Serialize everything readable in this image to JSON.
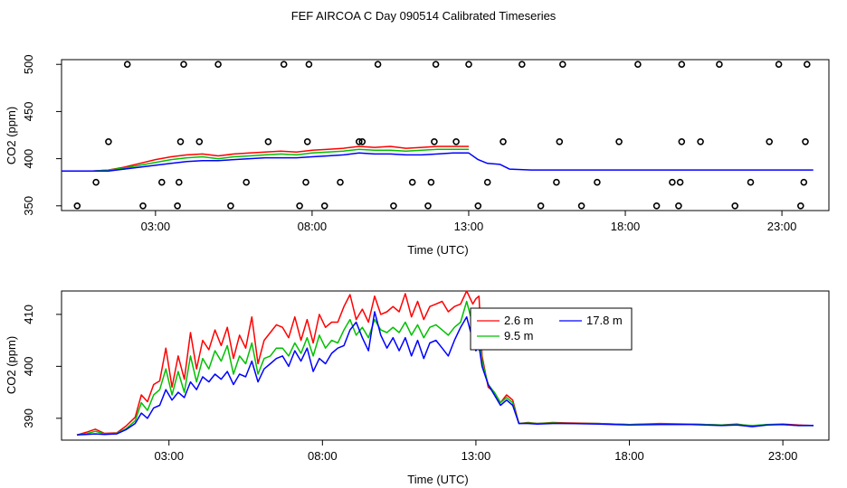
{
  "figure_title": "FEF AIRCOA C  Day 090514  Calibrated Timeseries",
  "colors": {
    "red": "#ff0000",
    "green": "#00c000",
    "blue": "#0000ff",
    "axis": "#000000"
  },
  "chart_data": [
    {
      "type": "line",
      "xlabel": "Time (UTC)",
      "ylabel": "CO2 (ppm)",
      "xlim": [
        0,
        24.5
      ],
      "ylim": [
        345,
        505
      ],
      "x_ticks": [
        3,
        8,
        13,
        18,
        23
      ],
      "x_tick_labels": [
        "03:00",
        "08:00",
        "13:00",
        "18:00",
        "23:00"
      ],
      "y_ticks": [
        350,
        400,
        450,
        500
      ],
      "y_tick_labels": [
        "350",
        "400",
        "450",
        "500"
      ],
      "series": [
        {
          "name": "2.6 m",
          "color": "red",
          "x": [
            0,
            1,
            1.5,
            2,
            2.5,
            3,
            3.5,
            4,
            4.5,
            5,
            5.5,
            6,
            6.5,
            7,
            7.5,
            8,
            8.5,
            9,
            9.5,
            10,
            10.5,
            11,
            11.5,
            12,
            12.5,
            13
          ],
          "y": [
            387,
            387,
            388,
            391,
            395,
            399,
            402,
            404,
            405,
            403,
            405,
            406,
            407,
            408,
            407,
            409,
            410,
            411,
            413,
            412,
            413,
            411,
            412,
            413,
            413,
            413
          ]
        },
        {
          "name": "9.5 m",
          "color": "green",
          "x": [
            0,
            1,
            1.5,
            2,
            2.5,
            3,
            3.5,
            4,
            4.5,
            5,
            5.5,
            6,
            6.5,
            7,
            7.5,
            8,
            8.5,
            9,
            9.5,
            10,
            10.5,
            11,
            11.5,
            12,
            12.5,
            13
          ],
          "y": [
            387,
            387,
            388,
            390,
            393,
            396,
            399,
            401,
            402,
            400,
            402,
            403,
            404,
            405,
            404,
            406,
            407,
            408,
            410,
            409,
            409,
            408,
            409,
            410,
            410,
            410
          ]
        },
        {
          "name": "17.8 m",
          "color": "blue",
          "x": [
            0,
            1,
            1.5,
            2,
            2.5,
            3,
            3.5,
            4,
            4.5,
            5,
            5.5,
            6,
            6.5,
            7,
            7.5,
            8,
            8.5,
            9,
            9.5,
            10,
            10.5,
            11,
            11.5,
            12,
            12.5,
            13,
            13.3,
            13.6,
            14,
            14.3,
            15,
            17,
            20,
            24
          ],
          "y": [
            387,
            387,
            387,
            389,
            391,
            393,
            395,
            397,
            398,
            398,
            399,
            400,
            401,
            401,
            401,
            402,
            403,
            404,
            406,
            405,
            405,
            404,
            404,
            405,
            406,
            406,
            399,
            395,
            394,
            389,
            388,
            388,
            388,
            388
          ]
        }
      ],
      "markers": {
        "symbol": "open-circle",
        "x": [
          0.5,
          1.1,
          1.5,
          2.1,
          2.6,
          3.2,
          3.7,
          3.75,
          3.8,
          3.9,
          4.4,
          5.0,
          5.4,
          5.9,
          6.6,
          7.1,
          7.6,
          7.8,
          7.85,
          7.9,
          8.4,
          8.9,
          9.5,
          9.6,
          10.1,
          10.6,
          11.2,
          11.7,
          11.8,
          11.9,
          11.95,
          12.6,
          13,
          13.3,
          13.6,
          14.1,
          14.7,
          15.3,
          15.8,
          15.9,
          16.0,
          16.6,
          17.1,
          17.8,
          18.4,
          19.0,
          19.5,
          19.7,
          19.75,
          19.8,
          19.8,
          20.4,
          21.0,
          21.5,
          22.0,
          22.6,
          22.9,
          23.6,
          23.7,
          23.75,
          23.8
        ],
        "y": [
          350,
          375,
          418,
          500,
          350,
          375,
          350,
          375,
          418,
          500,
          418,
          500,
          350,
          375,
          418,
          500,
          350,
          375,
          418,
          500,
          350,
          375,
          418,
          418,
          500,
          350,
          375,
          350,
          375,
          418,
          500,
          418,
          500,
          350,
          375,
          418,
          500,
          350,
          375,
          418,
          500,
          350,
          375,
          418,
          500,
          350,
          375,
          350,
          375,
          418,
          500,
          418,
          500,
          350,
          375,
          418,
          500,
          350,
          375,
          418,
          500
        ]
      }
    },
    {
      "type": "line",
      "xlabel": "Time (UTC)",
      "ylabel": "CO2 (ppm)",
      "xlim": [
        -0.5,
        24.5
      ],
      "ylim": [
        385.8,
        414.5
      ],
      "x_ticks": [
        3,
        8,
        13,
        18,
        23
      ],
      "x_tick_labels": [
        "03:00",
        "08:00",
        "13:00",
        "18:00",
        "23:00"
      ],
      "y_ticks": [
        390,
        400,
        410
      ],
      "y_tick_labels": [
        "390",
        "400",
        "410"
      ],
      "legend": {
        "position": "top-right",
        "entries": [
          "2.6 m",
          "9.5 m",
          "17.8 m"
        ]
      },
      "series": [
        {
          "name": "2.6 m",
          "color": "red",
          "x": [
            0,
            0.3,
            0.6,
            0.9,
            1.3,
            1.6,
            1.9,
            2.1,
            2.3,
            2.5,
            2.7,
            2.9,
            3.1,
            3.3,
            3.5,
            3.7,
            3.9,
            4.1,
            4.3,
            4.5,
            4.7,
            4.9,
            5.1,
            5.3,
            5.5,
            5.7,
            5.9,
            6.1,
            6.3,
            6.5,
            6.7,
            6.9,
            7.1,
            7.3,
            7.5,
            7.7,
            7.9,
            8.1,
            8.3,
            8.5,
            8.7,
            8.9,
            9.1,
            9.3,
            9.5,
            9.7,
            9.9,
            10.1,
            10.3,
            10.5,
            10.7,
            10.9,
            11.1,
            11.3,
            11.5,
            11.7,
            11.9,
            12.1,
            12.3,
            12.5,
            12.7,
            12.9,
            13.0,
            13.1,
            13.2,
            13.4,
            13.6,
            13.8,
            14.0,
            14.2,
            14.4,
            14.7,
            15.0,
            15.5,
            16,
            17,
            18,
            19,
            20,
            21,
            21.5,
            22,
            22.5,
            23,
            23.5,
            24
          ],
          "y": [
            386.8,
            387.3,
            387.9,
            387.1,
            387.2,
            388.5,
            390.2,
            394.5,
            393.2,
            396.5,
            397.2,
            403.5,
            396.0,
            402.0,
            397.5,
            406.5,
            399.5,
            405.0,
            403.2,
            407.0,
            404.0,
            407.5,
            401.5,
            406.0,
            403.5,
            409.5,
            400.5,
            405.0,
            406.5,
            408.0,
            407.5,
            405.5,
            409.5,
            405.0,
            409.0,
            404.5,
            410.0,
            407.5,
            408.5,
            408.5,
            411.5,
            413.8,
            409.0,
            411.0,
            408.5,
            413.5,
            410.0,
            410.5,
            411.5,
            410.5,
            414.0,
            409.5,
            412.5,
            409.0,
            411.5,
            412.0,
            412.5,
            410.5,
            411.5,
            412.0,
            414.5,
            412.0,
            413.0,
            413.5,
            402.0,
            396.0,
            395.0,
            393.0,
            394.5,
            393.5,
            389.0,
            389.2,
            389.0,
            389.2,
            389.1,
            389.0,
            388.8,
            389.0,
            388.9,
            388.7,
            388.9,
            388.5,
            388.8,
            388.9,
            388.7,
            388.6
          ]
        },
        {
          "name": "9.5 m",
          "color": "green",
          "x": [
            0,
            0.3,
            0.6,
            0.9,
            1.3,
            1.6,
            1.9,
            2.1,
            2.3,
            2.5,
            2.7,
            2.9,
            3.1,
            3.3,
            3.5,
            3.7,
            3.9,
            4.1,
            4.3,
            4.5,
            4.7,
            4.9,
            5.1,
            5.3,
            5.5,
            5.7,
            5.9,
            6.1,
            6.3,
            6.5,
            6.7,
            6.9,
            7.1,
            7.3,
            7.5,
            7.7,
            7.9,
            8.1,
            8.3,
            8.5,
            8.7,
            8.9,
            9.1,
            9.3,
            9.5,
            9.7,
            9.9,
            10.1,
            10.3,
            10.5,
            10.7,
            10.9,
            11.1,
            11.3,
            11.5,
            11.7,
            11.9,
            12.1,
            12.3,
            12.5,
            12.7,
            12.9,
            13.0,
            13.1,
            13.2,
            13.4,
            13.6,
            13.8,
            14.0,
            14.2,
            14.4,
            14.7,
            15.0,
            15.5,
            16,
            17,
            18,
            19,
            20,
            21,
            21.5,
            22,
            22.5,
            23,
            23.5,
            24
          ],
          "y": [
            386.8,
            387.0,
            387.5,
            387.0,
            387.1,
            388.0,
            389.5,
            393.0,
            391.5,
            394.5,
            395.5,
            399.5,
            394.5,
            399.0,
            395.0,
            402.0,
            397.0,
            401.5,
            399.5,
            403.0,
            401.0,
            404.0,
            398.5,
            402.0,
            400.5,
            404.5,
            398.5,
            401.5,
            402.0,
            403.5,
            403.5,
            402.0,
            404.5,
            402.5,
            405.5,
            402.0,
            406.0,
            403.5,
            405.0,
            404.5,
            407.0,
            409.0,
            406.0,
            407.5,
            405.5,
            409.0,
            407.0,
            406.5,
            407.5,
            406.5,
            408.5,
            406.0,
            408.0,
            405.5,
            407.5,
            408.0,
            407.0,
            406.0,
            407.5,
            408.5,
            412.5,
            408.0,
            403.5,
            407.5,
            401.0,
            396.5,
            395.0,
            393.0,
            394.0,
            393.0,
            389.0,
            389.1,
            389.0,
            389.1,
            389.0,
            389.0,
            388.8,
            388.9,
            388.9,
            388.7,
            388.8,
            388.6,
            388.8,
            388.8,
            388.6,
            388.6
          ]
        },
        {
          "name": "17.8 m",
          "color": "blue",
          "x": [
            0,
            0.3,
            0.6,
            0.9,
            1.3,
            1.6,
            1.9,
            2.1,
            2.3,
            2.5,
            2.7,
            2.9,
            3.1,
            3.3,
            3.5,
            3.7,
            3.9,
            4.1,
            4.3,
            4.5,
            4.7,
            4.9,
            5.1,
            5.3,
            5.5,
            5.7,
            5.9,
            6.1,
            6.3,
            6.5,
            6.7,
            6.9,
            7.1,
            7.3,
            7.5,
            7.7,
            7.9,
            8.1,
            8.3,
            8.5,
            8.7,
            8.9,
            9.1,
            9.3,
            9.5,
            9.7,
            9.9,
            10.1,
            10.3,
            10.5,
            10.7,
            10.9,
            11.1,
            11.3,
            11.5,
            11.7,
            11.9,
            12.1,
            12.3,
            12.5,
            12.7,
            12.9,
            13.0,
            13.1,
            13.2,
            13.4,
            13.6,
            13.8,
            14.0,
            14.2,
            14.4,
            14.7,
            15.0,
            15.5,
            16,
            17,
            18,
            19,
            20,
            21,
            21.5,
            22,
            22.5,
            23,
            23.5,
            24
          ],
          "y": [
            386.8,
            386.9,
            387.0,
            386.9,
            387.0,
            387.8,
            389.0,
            391.0,
            390.0,
            392.0,
            392.5,
            395.5,
            393.5,
            395.0,
            394.0,
            397.0,
            395.5,
            398.0,
            397.0,
            398.5,
            397.5,
            399.0,
            396.5,
            398.5,
            398.0,
            401.0,
            397.0,
            399.5,
            400.5,
            401.5,
            402.0,
            400.0,
            403.0,
            401.0,
            403.5,
            399.0,
            401.5,
            400.5,
            402.5,
            403.5,
            404.0,
            407.0,
            408.5,
            405.5,
            403.0,
            410.5,
            406.0,
            403.5,
            405.5,
            403.0,
            405.5,
            402.0,
            405.0,
            401.5,
            404.5,
            405.0,
            403.5,
            402.0,
            405.0,
            407.5,
            409.5,
            405.0,
            403.0,
            404.0,
            400.0,
            396.5,
            394.5,
            392.5,
            393.5,
            392.5,
            389.0,
            389.0,
            388.9,
            389.0,
            389.0,
            388.9,
            388.7,
            388.8,
            388.8,
            388.6,
            388.7,
            388.4,
            388.7,
            388.8,
            388.6,
            388.6
          ]
        }
      ]
    }
  ]
}
